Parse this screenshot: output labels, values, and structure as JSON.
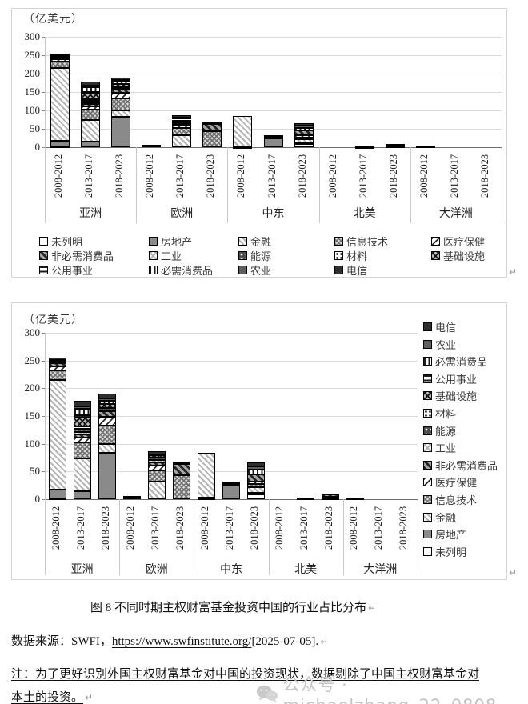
{
  "page": {
    "caption": "图 8 不同时期主权财富基金投资中国的行业占比分布",
    "source_prefix": "数据来源：SWFI，",
    "source_link": "https://www.swfinstitute.org/",
    "source_suffix": "[2025-07-05].",
    "note_line1": "注：为了更好识别外国主权财富基金对中国的投资现状，数据剔除了中国主权财富基金对",
    "note_line2": "本土的投资。",
    "paragraph_mark": "↵",
    "watermark": "公众号 · michaelzhang_22_0808"
  },
  "chart_data": [
    {
      "type": "bar",
      "stacked": true,
      "unit_label": "（亿美元）",
      "ylabel": "亿美元",
      "ylim": [
        0,
        300
      ],
      "yticks": [
        0,
        50,
        100,
        150,
        200,
        250,
        300
      ],
      "grid": true,
      "legend_position": "bottom",
      "legend_order": "normal",
      "regions": [
        "亚洲",
        "欧洲",
        "中东",
        "北美",
        "大洋洲"
      ],
      "periods": [
        "2008-2012",
        "2013-2017",
        "2018-2023"
      ],
      "totals": [
        255,
        178,
        190,
        6,
        86,
        67,
        84,
        32,
        66,
        0,
        3,
        8,
        2,
        0,
        0
      ],
      "series": [
        {
          "name": "未列明",
          "key": "unlisted",
          "values": [
            2,
            0,
            0,
            0,
            0,
            0,
            1,
            0,
            9,
            0,
            0,
            0,
            0,
            0,
            0
          ]
        },
        {
          "name": "房地产",
          "key": "realestate",
          "values": [
            16,
            15,
            83,
            4,
            0,
            0,
            2,
            24,
            3,
            0,
            1,
            0,
            0,
            0,
            0
          ]
        },
        {
          "name": "金融",
          "key": "finance",
          "values": [
            197,
            58,
            17,
            0,
            32,
            0,
            81,
            4,
            9,
            0,
            1,
            2,
            2,
            0,
            0
          ]
        },
        {
          "name": "信息技术",
          "key": "it",
          "values": [
            17,
            30,
            32,
            0,
            20,
            43,
            0,
            2,
            6,
            0,
            0,
            2,
            0,
            0,
            0
          ]
        },
        {
          "name": "医疗保健",
          "key": "healthcare",
          "values": [
            8,
            8,
            16,
            0,
            8,
            0,
            0,
            0,
            5,
            0,
            0,
            0,
            0,
            0,
            0
          ]
        },
        {
          "name": "非必需消费品",
          "key": "discretionary",
          "values": [
            5,
            6,
            10,
            0,
            6,
            21,
            0,
            0,
            13,
            0,
            0,
            4,
            0,
            0,
            0
          ]
        },
        {
          "name": "工业",
          "key": "industrials",
          "values": [
            0,
            4,
            0,
            0,
            5,
            0,
            0,
            0,
            0,
            0,
            0,
            0,
            0,
            0,
            0
          ]
        },
        {
          "name": "能源",
          "key": "energy",
          "values": [
            3,
            6,
            6,
            0,
            4,
            0,
            0,
            0,
            0,
            0,
            0,
            0,
            0,
            0,
            0
          ]
        },
        {
          "name": "材料",
          "key": "materials",
          "values": [
            0,
            4,
            0,
            0,
            0,
            0,
            0,
            0,
            0,
            0,
            0,
            0,
            0,
            0,
            0
          ]
        },
        {
          "name": "基础设施",
          "key": "infrastructure",
          "values": [
            3,
            16,
            8,
            0,
            5,
            0,
            0,
            0,
            0,
            0,
            0,
            0,
            0,
            0,
            0
          ]
        },
        {
          "name": "公用事业",
          "key": "utilities",
          "values": [
            0,
            4,
            0,
            0,
            0,
            0,
            0,
            0,
            0,
            0,
            0,
            0,
            0,
            0,
            0
          ]
        },
        {
          "name": "必需消费品",
          "key": "staples",
          "values": [
            0,
            12,
            6,
            0,
            0,
            0,
            0,
            0,
            8,
            0,
            0,
            0,
            0,
            0,
            0
          ]
        },
        {
          "name": "农业",
          "key": "agriculture",
          "values": [
            0,
            5,
            4,
            0,
            0,
            0,
            0,
            0,
            6,
            0,
            0,
            0,
            0,
            0,
            0
          ]
        },
        {
          "name": "电信",
          "key": "telecom",
          "values": [
            4,
            10,
            8,
            2,
            6,
            3,
            0,
            2,
            7,
            0,
            1,
            0,
            0,
            0,
            0
          ]
        }
      ]
    },
    {
      "type": "bar",
      "stacked": true,
      "unit_label": "（亿美元）",
      "ylabel": "亿美元",
      "ylim": [
        0,
        300
      ],
      "yticks": [
        0,
        50,
        100,
        150,
        200,
        250,
        300
      ],
      "grid": true,
      "legend_position": "right",
      "legend_order": "reversed",
      "regions": [
        "亚洲",
        "欧洲",
        "中东",
        "北美",
        "大洋洲"
      ],
      "periods": [
        "2008-2012",
        "2013-2017",
        "2018-2023"
      ],
      "totals": [
        255,
        178,
        190,
        6,
        86,
        67,
        84,
        32,
        66,
        0,
        3,
        8,
        2,
        0,
        0
      ],
      "series": [
        {
          "name": "未列明",
          "key": "unlisted",
          "values": [
            2,
            0,
            0,
            0,
            0,
            0,
            1,
            0,
            9,
            0,
            0,
            0,
            0,
            0,
            0
          ]
        },
        {
          "name": "房地产",
          "key": "realestate",
          "values": [
            16,
            15,
            83,
            4,
            0,
            0,
            2,
            24,
            3,
            0,
            1,
            0,
            0,
            0,
            0
          ]
        },
        {
          "name": "金融",
          "key": "finance",
          "values": [
            197,
            58,
            17,
            0,
            32,
            0,
            81,
            4,
            9,
            0,
            1,
            2,
            2,
            0,
            0
          ]
        },
        {
          "name": "信息技术",
          "key": "it",
          "values": [
            17,
            30,
            32,
            0,
            20,
            43,
            0,
            2,
            6,
            0,
            0,
            2,
            0,
            0,
            0
          ]
        },
        {
          "name": "医疗保健",
          "key": "healthcare",
          "values": [
            8,
            8,
            16,
            0,
            8,
            0,
            0,
            0,
            5,
            0,
            0,
            0,
            0,
            0,
            0
          ]
        },
        {
          "name": "非必需消费品",
          "key": "discretionary",
          "values": [
            5,
            6,
            10,
            0,
            6,
            21,
            0,
            0,
            13,
            0,
            0,
            4,
            0,
            0,
            0
          ]
        },
        {
          "name": "工业",
          "key": "industrials",
          "values": [
            0,
            4,
            0,
            0,
            5,
            0,
            0,
            0,
            0,
            0,
            0,
            0,
            0,
            0,
            0
          ]
        },
        {
          "name": "能源",
          "key": "energy",
          "values": [
            3,
            6,
            6,
            0,
            4,
            0,
            0,
            0,
            0,
            0,
            0,
            0,
            0,
            0,
            0
          ]
        },
        {
          "name": "材料",
          "key": "materials",
          "values": [
            0,
            4,
            0,
            0,
            0,
            0,
            0,
            0,
            0,
            0,
            0,
            0,
            0,
            0,
            0
          ]
        },
        {
          "name": "基础设施",
          "key": "infrastructure",
          "values": [
            3,
            16,
            8,
            0,
            5,
            0,
            0,
            0,
            0,
            0,
            0,
            0,
            0,
            0,
            0
          ]
        },
        {
          "name": "公用事业",
          "key": "utilities",
          "values": [
            0,
            4,
            0,
            0,
            0,
            0,
            0,
            0,
            0,
            0,
            0,
            0,
            0,
            0,
            0
          ]
        },
        {
          "name": "必需消费品",
          "key": "staples",
          "values": [
            0,
            12,
            6,
            0,
            0,
            0,
            0,
            0,
            8,
            0,
            0,
            0,
            0,
            0,
            0
          ]
        },
        {
          "name": "农业",
          "key": "agriculture",
          "values": [
            0,
            5,
            4,
            0,
            0,
            0,
            0,
            0,
            6,
            0,
            0,
            0,
            0,
            0,
            0
          ]
        },
        {
          "name": "电信",
          "key": "telecom",
          "values": [
            4,
            10,
            8,
            2,
            6,
            3,
            0,
            2,
            7,
            0,
            1,
            0,
            0,
            0,
            0
          ]
        }
      ]
    }
  ]
}
